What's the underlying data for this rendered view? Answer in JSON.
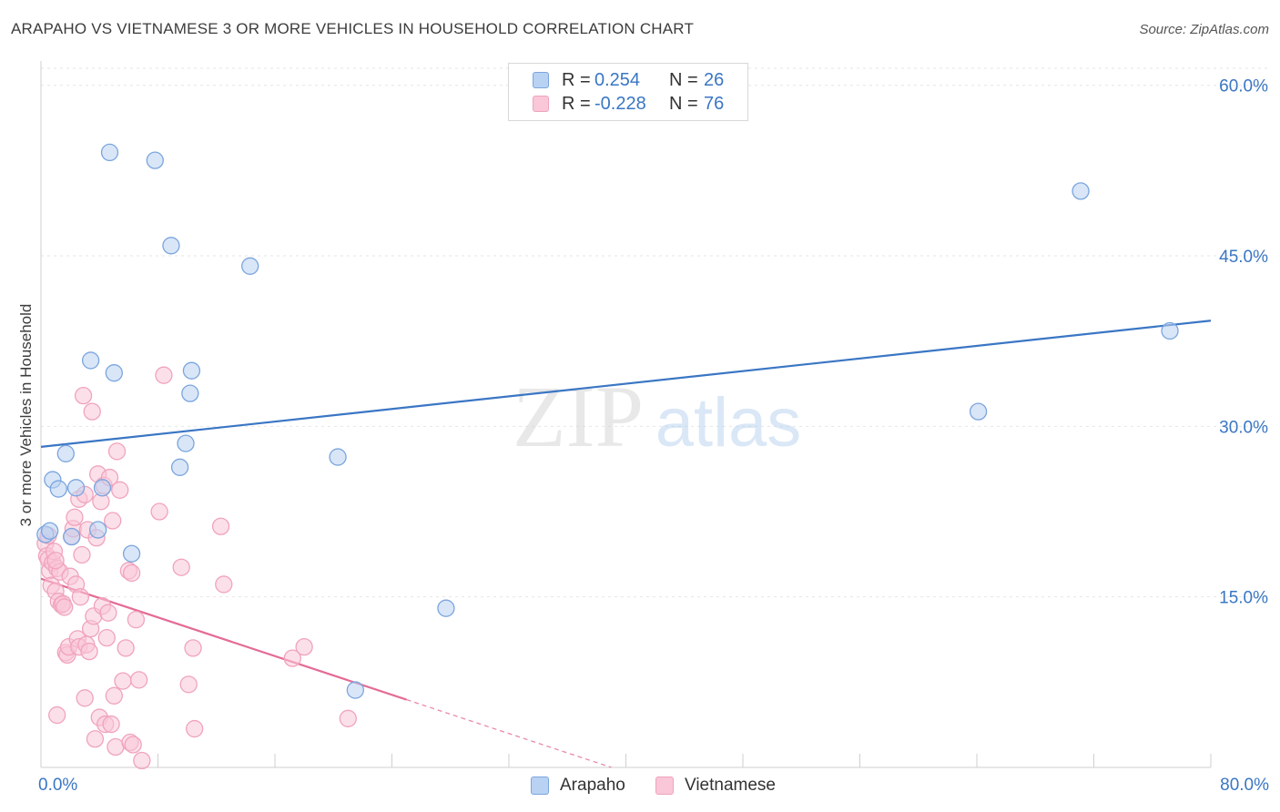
{
  "title": "ARAPAHO VS VIETNAMESE 3 OR MORE VEHICLES IN HOUSEHOLD CORRELATION CHART",
  "source": "Source: ZipAtlas.com",
  "watermark": {
    "part1": "ZIP",
    "part2": "atlas"
  },
  "legend_top": {
    "rows": [
      {
        "r_label": "R =",
        "r_value": "0.254",
        "n_label": "N =",
        "n_value": "26"
      },
      {
        "r_label": "R =",
        "r_value": "-0.228",
        "n_label": "N =",
        "n_value": "76"
      }
    ]
  },
  "x_axis": {
    "min_label": "0.0%",
    "max_label": "80.0%"
  },
  "chart_data": {
    "type": "scatter",
    "title": "ARAPAHO VS VIETNAMESE 3 OR MORE VEHICLES IN HOUSEHOLD CORRELATION CHART",
    "xlabel": "",
    "ylabel": "3 or more Vehicles in Household",
    "xlim": [
      0,
      80
    ],
    "ylim": [
      0,
      61.5
    ],
    "y_ticks": [
      {
        "value": 15,
        "label": "15.0%"
      },
      {
        "value": 30,
        "label": "30.0%"
      },
      {
        "value": 45,
        "label": "45.0%"
      },
      {
        "value": 60,
        "label": "60.0%"
      }
    ],
    "x_tick_values": [
      0,
      8,
      16,
      24,
      32,
      40,
      48,
      56,
      64,
      72,
      80
    ],
    "series": [
      {
        "name": "Arapaho",
        "color": "#3a76c4",
        "fill": "#b9d2f3",
        "stroke": "#7aa5de",
        "trend": {
          "x0": 0,
          "y0": 28.2,
          "x1": 80,
          "y1": 39.3,
          "dash_from": null
        },
        "points": [
          [
            0.3,
            20.5
          ],
          [
            0.6,
            20.8
          ],
          [
            0.8,
            25.3
          ],
          [
            1.2,
            24.5
          ],
          [
            1.7,
            27.6
          ],
          [
            2.1,
            20.3
          ],
          [
            2.4,
            24.6
          ],
          [
            3.4,
            35.8
          ],
          [
            3.9,
            20.9
          ],
          [
            4.2,
            24.6
          ],
          [
            4.7,
            54.1
          ],
          [
            5.0,
            34.7
          ],
          [
            6.2,
            18.8
          ],
          [
            7.8,
            53.4
          ],
          [
            8.9,
            45.9
          ],
          [
            9.5,
            26.4
          ],
          [
            9.9,
            28.5
          ],
          [
            10.2,
            32.9
          ],
          [
            10.3,
            34.9
          ],
          [
            14.3,
            44.1
          ],
          [
            20.3,
            27.3
          ],
          [
            21.5,
            6.8
          ],
          [
            27.7,
            14.0
          ],
          [
            64.1,
            31.3
          ],
          [
            71.1,
            50.7
          ],
          [
            77.2,
            38.4
          ]
        ]
      },
      {
        "name": "Vietnamese",
        "color": "#e46b96",
        "fill": "#f9c7d7",
        "stroke": "#f0a3bd",
        "trend": {
          "x0": 0,
          "y0": 16.6,
          "x1": 39,
          "y1": 0,
          "dash_from": 25
        },
        "points": [
          [
            0.3,
            19.7
          ],
          [
            0.4,
            18.6
          ],
          [
            0.5,
            18.3
          ],
          [
            0.6,
            17.3
          ],
          [
            0.7,
            16.0
          ],
          [
            0.8,
            18.0
          ],
          [
            0.9,
            19.0
          ],
          [
            1.0,
            15.5
          ],
          [
            1.1,
            17.5
          ],
          [
            1.1,
            4.6
          ],
          [
            1.2,
            14.6
          ],
          [
            1.3,
            17.2
          ],
          [
            1.4,
            14.3
          ],
          [
            1.5,
            14.4
          ],
          [
            1.6,
            14.1
          ],
          [
            1.7,
            10.1
          ],
          [
            1.8,
            9.9
          ],
          [
            1.9,
            10.6
          ],
          [
            2.0,
            16.8
          ],
          [
            2.1,
            20.3
          ],
          [
            2.2,
            21.0
          ],
          [
            2.3,
            22.0
          ],
          [
            2.4,
            16.1
          ],
          [
            2.5,
            11.3
          ],
          [
            2.6,
            10.6
          ],
          [
            2.6,
            23.6
          ],
          [
            2.7,
            15.0
          ],
          [
            2.8,
            18.7
          ],
          [
            2.9,
            32.7
          ],
          [
            3.0,
            6.1
          ],
          [
            3.1,
            10.8
          ],
          [
            3.2,
            20.9
          ],
          [
            3.3,
            10.2
          ],
          [
            3.4,
            12.2
          ],
          [
            3.5,
            31.3
          ],
          [
            3.6,
            13.3
          ],
          [
            3.7,
            2.5
          ],
          [
            3.8,
            20.2
          ],
          [
            3.9,
            25.8
          ],
          [
            4.0,
            4.4
          ],
          [
            4.1,
            23.4
          ],
          [
            4.2,
            14.2
          ],
          [
            4.3,
            24.8
          ],
          [
            4.4,
            3.8
          ],
          [
            4.5,
            11.4
          ],
          [
            4.6,
            13.6
          ],
          [
            4.7,
            25.5
          ],
          [
            4.8,
            3.8
          ],
          [
            4.9,
            21.7
          ],
          [
            5.0,
            6.3
          ],
          [
            5.1,
            1.8
          ],
          [
            5.2,
            27.8
          ],
          [
            5.4,
            24.4
          ],
          [
            5.6,
            7.6
          ],
          [
            5.8,
            10.5
          ],
          [
            6.0,
            17.3
          ],
          [
            6.1,
            2.2
          ],
          [
            6.2,
            17.1
          ],
          [
            6.3,
            2.0
          ],
          [
            6.5,
            13.0
          ],
          [
            6.7,
            7.7
          ],
          [
            6.9,
            0.6
          ],
          [
            8.1,
            22.5
          ],
          [
            8.4,
            34.5
          ],
          [
            9.6,
            17.6
          ],
          [
            10.1,
            7.3
          ],
          [
            10.4,
            10.5
          ],
          [
            10.5,
            3.4
          ],
          [
            12.3,
            21.2
          ],
          [
            12.5,
            16.1
          ],
          [
            17.2,
            9.6
          ],
          [
            18.0,
            10.6
          ],
          [
            21.0,
            4.3
          ],
          [
            0.5,
            20.4
          ],
          [
            1.0,
            18.2
          ],
          [
            3.0,
            24.0
          ]
        ]
      }
    ]
  }
}
